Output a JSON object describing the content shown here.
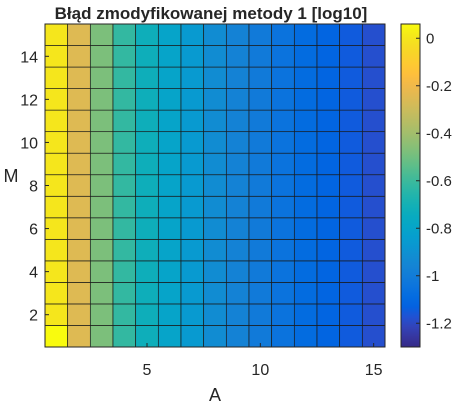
{
  "chart_data": {
    "type": "heatmap",
    "title": "Błąd zmodyfikowanej metody 1 [log10]",
    "xlabel": "A",
    "ylabel": "M",
    "x_values": [
      1,
      2,
      3,
      4,
      5,
      6,
      7,
      8,
      9,
      10,
      11,
      12,
      13,
      14,
      15
    ],
    "y_values": [
      1,
      2,
      3,
      4,
      5,
      6,
      7,
      8,
      9,
      10,
      11,
      12,
      13,
      14,
      15
    ],
    "x_ticks": [
      5,
      10,
      15
    ],
    "y_ticks": [
      2,
      4,
      6,
      8,
      10,
      12,
      14
    ],
    "xlim": [
      0.5,
      15.5
    ],
    "ylim": [
      0.5,
      15.5
    ],
    "column_values": [
      0.0,
      -0.25,
      -0.48,
      -0.62,
      -0.72,
      -0.8,
      -0.86,
      -0.92,
      -0.97,
      -1.01,
      -1.05,
      -1.09,
      -1.12,
      -1.15,
      -1.18
    ],
    "corner_override": {
      "x": 1,
      "y": 1,
      "value": 0.06
    },
    "colormap": "parula",
    "colorbar": {
      "range": [
        -1.3,
        0.06
      ],
      "ticks": [
        0,
        -0.2,
        -0.4,
        -0.6,
        -0.8,
        -1,
        -1.2
      ],
      "tick_labels": [
        "0",
        "-0.2",
        "-0.4",
        "-0.6",
        "-0.8",
        "-1",
        "-1.2"
      ]
    },
    "grid": true
  }
}
